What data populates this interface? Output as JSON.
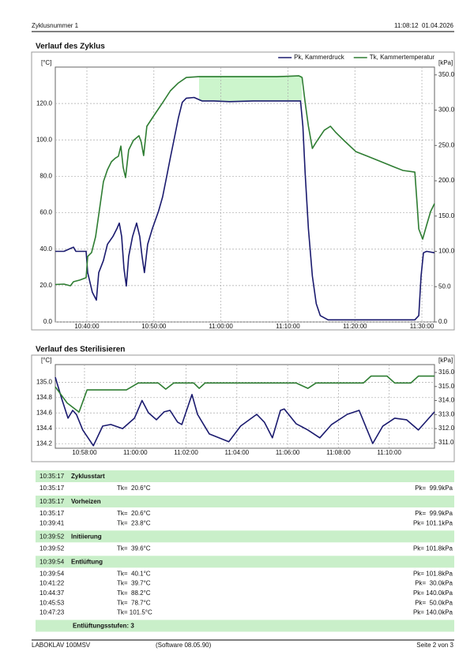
{
  "header": {
    "left": "Zyklusnummer 1",
    "right": "11:08:12  01.04.2026"
  },
  "chart_data": [
    {
      "type": "line",
      "title": "Verlauf des Zyklus",
      "y_label": "[°C]",
      "y2_label": "[kPa]",
      "legend": "top-right",
      "grid": true,
      "xlim": [
        "10:35:17",
        "11:31:53"
      ],
      "xticks": [
        "10:40:00",
        "10:50:00",
        "11:00:00",
        "11:10:00",
        "11:20:00",
        "11:30:00"
      ],
      "ylim": [
        0,
        140
      ],
      "yticks": [
        {
          "value": 0,
          "label": "0.0"
        },
        {
          "value": 20,
          "label": "20.0"
        },
        {
          "value": 40,
          "label": "40.0"
        },
        {
          "value": 60,
          "label": "60.0"
        },
        {
          "value": 80,
          "label": "80.0"
        },
        {
          "value": 100,
          "label": "100.0"
        },
        {
          "value": 120,
          "label": "120.0"
        }
      ],
      "y2lim": [
        0,
        361
      ],
      "y2ticks": [
        {
          "value": 0,
          "label": "0.0"
        },
        {
          "value": 50,
          "label": "50.0"
        },
        {
          "value": 100,
          "label": "100.0"
        },
        {
          "value": 150,
          "label": "150.0"
        },
        {
          "value": 200,
          "label": "200.0"
        },
        {
          "value": 250,
          "label": "250.0"
        },
        {
          "value": 300,
          "label": "300.0"
        },
        {
          "value": 350,
          "label": "350.0"
        }
      ],
      "series": [
        {
          "name": "Pk, Kammerdruck",
          "color": "#1a1a6e",
          "axis": "y2",
          "x": [
            "10:35:17",
            "10:36:35",
            "10:37:32",
            "10:38:00",
            "10:38:21",
            "10:39:53",
            "10:40:07",
            "10:40:49",
            "10:41:25",
            "10:41:46",
            "10:42:28",
            "10:43:04",
            "10:43:53",
            "10:44:28",
            "10:44:50",
            "10:45:11",
            "10:45:32",
            "10:45:53",
            "10:46:14",
            "10:46:49",
            "10:47:25",
            "10:47:53",
            "10:48:14",
            "10:48:35",
            "10:49:04",
            "10:49:46",
            "10:50:42",
            "10:51:18",
            "10:51:53",
            "10:52:28",
            "10:53:04",
            "10:53:39",
            "10:54:14",
            "10:54:50",
            "10:56:00",
            "10:57:11",
            "10:58:57",
            "11:01:18",
            "11:04:50",
            "11:08:21",
            "11:11:53",
            "11:12:14",
            "11:12:35",
            "11:13:04",
            "11:13:39",
            "11:14:14",
            "11:14:50",
            "11:16:00",
            "11:28:57",
            "11:29:32",
            "11:29:53",
            "11:30:14",
            "11:30:43",
            "11:31:53"
          ],
          "values": [
            100,
            100,
            104,
            106,
            100,
            100,
            70,
            42,
            31,
            70,
            87,
            110,
            121,
            132,
            140,
            121,
            76,
            51,
            93,
            121,
            140,
            121,
            93,
            70,
            110,
            132,
            157,
            177,
            205,
            233,
            261,
            289,
            311,
            317,
            318,
            313,
            313,
            312,
            313,
            313,
            313,
            277,
            210,
            132,
            65,
            26,
            9,
            3,
            3,
            9,
            65,
            98,
            100,
            98
          ]
        },
        {
          "name": "Tk, Kammertemperatur",
          "color": "#2e7d32",
          "axis": "y",
          "x": [
            "10:35:17",
            "10:36:35",
            "10:37:32",
            "10:38:00",
            "10:38:56",
            "10:39:53",
            "10:40:07",
            "10:40:42",
            "10:41:18",
            "10:41:53",
            "10:42:28",
            "10:43:04",
            "10:43:39",
            "10:44:14",
            "10:44:42",
            "10:45:04",
            "10:45:25",
            "10:45:46",
            "10:46:14",
            "10:46:56",
            "10:47:46",
            "10:48:07",
            "10:48:28",
            "10:48:57",
            "10:50:07",
            "10:51:18",
            "10:52:28",
            "10:53:39",
            "10:54:50",
            "10:56:35",
            "11:02:28",
            "11:08:21",
            "11:11:39",
            "11:12:07",
            "11:12:35",
            "11:13:04",
            "11:13:39",
            "11:14:14",
            "11:15:25",
            "11:16:21",
            "11:17:11",
            "11:18:22",
            "11:20:08",
            "11:21:54",
            "11:23:39",
            "11:26:01",
            "11:27:11",
            "11:28:57",
            "11:29:18",
            "11:29:32",
            "11:30:07",
            "11:30:43",
            "11:31:18",
            "11:31:53"
          ],
          "values": [
            20.6,
            20.8,
            19.9,
            22.1,
            23,
            24.3,
            36,
            38.1,
            46.8,
            62,
            77,
            83.6,
            88,
            90,
            91,
            96.6,
            85,
            79.3,
            94.5,
            99.7,
            102.3,
            98.8,
            91.4,
            107.5,
            114,
            120.4,
            127,
            131.3,
            134.3,
            134.7,
            134.7,
            134.7,
            135.2,
            134.3,
            120.4,
            107.5,
            95.3,
            98.8,
            105.3,
            107.5,
            104,
            99.7,
            93.6,
            91,
            88.4,
            84.9,
            83.2,
            82.3,
            64.1,
            51.1,
            45.5,
            53.3,
            60.7,
            65
          ]
        }
      ]
    },
    {
      "type": "line",
      "title": "Verlauf des Sterilisieren",
      "y_label": "[°C]",
      "y2_label": "[kPa]",
      "grid": true,
      "xlim": [
        "10:56:51",
        "11:11:47"
      ],
      "xticks": [
        "10:58:00",
        "11:00:00",
        "11:02:00",
        "11:04:00",
        "11:06:00",
        "11:08:00",
        "11:10:00"
      ],
      "ylim": [
        134.14,
        135.23
      ],
      "yticks": [
        134.2,
        134.4,
        134.6,
        134.8,
        {
          "value": 135,
          "label": "135.0"
        }
      ],
      "y2lim": [
        310.6,
        316.56
      ],
      "y2ticks": [
        {
          "value": 311,
          "label": "311.0"
        },
        {
          "value": 312,
          "label": "312.0"
        },
        {
          "value": 313,
          "label": "313.0"
        },
        {
          "value": 314,
          "label": "314.0"
        },
        {
          "value": 315,
          "label": "315.0"
        },
        {
          "value": 316,
          "label": "316.0"
        }
      ],
      "series": [
        {
          "color": "#1a1a6e",
          "axis": "y2",
          "x": [
            "10:56:51",
            "10:57:06",
            "10:57:21",
            "10:57:32",
            "10:57:41",
            "10:57:56",
            "10:58:21",
            "10:58:43",
            "10:59:02",
            "10:59:30",
            "10:59:58",
            "11:00:16",
            "11:00:31",
            "11:00:50",
            "11:01:08",
            "11:01:22",
            "11:01:40",
            "11:01:50",
            "11:02:14",
            "11:02:27",
            "11:02:55",
            "11:03:41",
            "11:04:09",
            "11:04:47",
            "11:05:05",
            "11:05:24",
            "11:05:43",
            "11:05:52",
            "11:06:20",
            "11:06:48",
            "11:07:16",
            "11:07:44",
            "11:08:21",
            "11:08:49",
            "11:09:08",
            "11:09:21",
            "11:09:45",
            "11:10:13",
            "11:10:41",
            "11:11:09",
            "11:11:47"
          ],
          "values": [
            315.66,
            314.15,
            312.74,
            313.3,
            313,
            311.9,
            310.78,
            312.18,
            312.29,
            312,
            312.74,
            314,
            313.13,
            312.63,
            313.19,
            313.3,
            312.46,
            312.29,
            314.43,
            313.02,
            311.62,
            311.06,
            312.18,
            313.02,
            312.46,
            311.34,
            313.3,
            313.4,
            312.35,
            311.9,
            311.34,
            312.29,
            313.02,
            313.3,
            311.9,
            310.94,
            312.18,
            312.74,
            312.63,
            311.9,
            313.19
          ]
        },
        {
          "color": "#2e7d32",
          "axis": "y",
          "x": [
            "10:56:51",
            "10:57:19",
            "10:57:47",
            "10:58:06",
            "10:59:39",
            "11:00:07",
            "11:00:54",
            "11:01:12",
            "11:01:31",
            "11:02:18",
            "11:02:31",
            "11:02:45",
            "11:06:20",
            "11:06:48",
            "11:07:07",
            "11:08:59",
            "11:09:17",
            "11:09:55",
            "11:10:13",
            "11:10:51",
            "11:11:09",
            "11:11:47"
          ],
          "values": [
            134.94,
            134.73,
            134.61,
            134.9,
            134.9,
            134.99,
            134.99,
            134.91,
            134.99,
            134.99,
            134.92,
            134.99,
            134.99,
            134.92,
            134.99,
            134.99,
            135.08,
            135.08,
            134.99,
            134.99,
            135.08,
            135.08
          ]
        }
      ]
    }
  ],
  "log": {
    "sections": [
      {
        "time": "10:35:17",
        "title": "Zyklusstart",
        "rows": [
          {
            "time": "10:35:17",
            "tk": "Tk=  20.6°C",
            "pk": "Pk=  99.9kPa"
          }
        ]
      },
      {
        "time": "10:35:17",
        "title": "Vorheizen",
        "rows": [
          {
            "time": "10:35:17",
            "tk": "Tk=  20.6°C",
            "pk": "Pk=  99.9kPa"
          },
          {
            "time": "10:39:41",
            "tk": "Tk=  23.8°C",
            "pk": "Pk= 101.1kPa"
          }
        ]
      },
      {
        "time": "10:39:52",
        "title": "Initiierung",
        "rows": [
          {
            "time": "10:39:52",
            "tk": "Tk=  39.6°C",
            "pk": "Pk= 101.8kPa"
          }
        ]
      },
      {
        "time": "10:39:54",
        "title": "Entlüftung",
        "rows": [
          {
            "time": "10:39:54",
            "tk": "Tk=  40.1°C",
            "pk": "Pk= 101.8kPa"
          },
          {
            "time": "10:41:22",
            "tk": "Tk=  39.7°C",
            "pk": "Pk=  30.0kPa"
          },
          {
            "time": "10:44:37",
            "tk": "Tk=  88.2°C",
            "pk": "Pk= 140.0kPa"
          },
          {
            "time": "10:45:53",
            "tk": "Tk=  78.7°C",
            "pk": "Pk=  50.0kPa"
          },
          {
            "time": "10:47:23",
            "tk": "Tk= 101.5°C",
            "pk": "Pk= 140.0kPa"
          }
        ]
      }
    ],
    "summary": "Entlüftungsstufen: 3"
  },
  "footer": {
    "device": "LABOKLAV 100MSV",
    "software": "(Software 08.05.90)",
    "page": "Seite 2 von 3"
  }
}
